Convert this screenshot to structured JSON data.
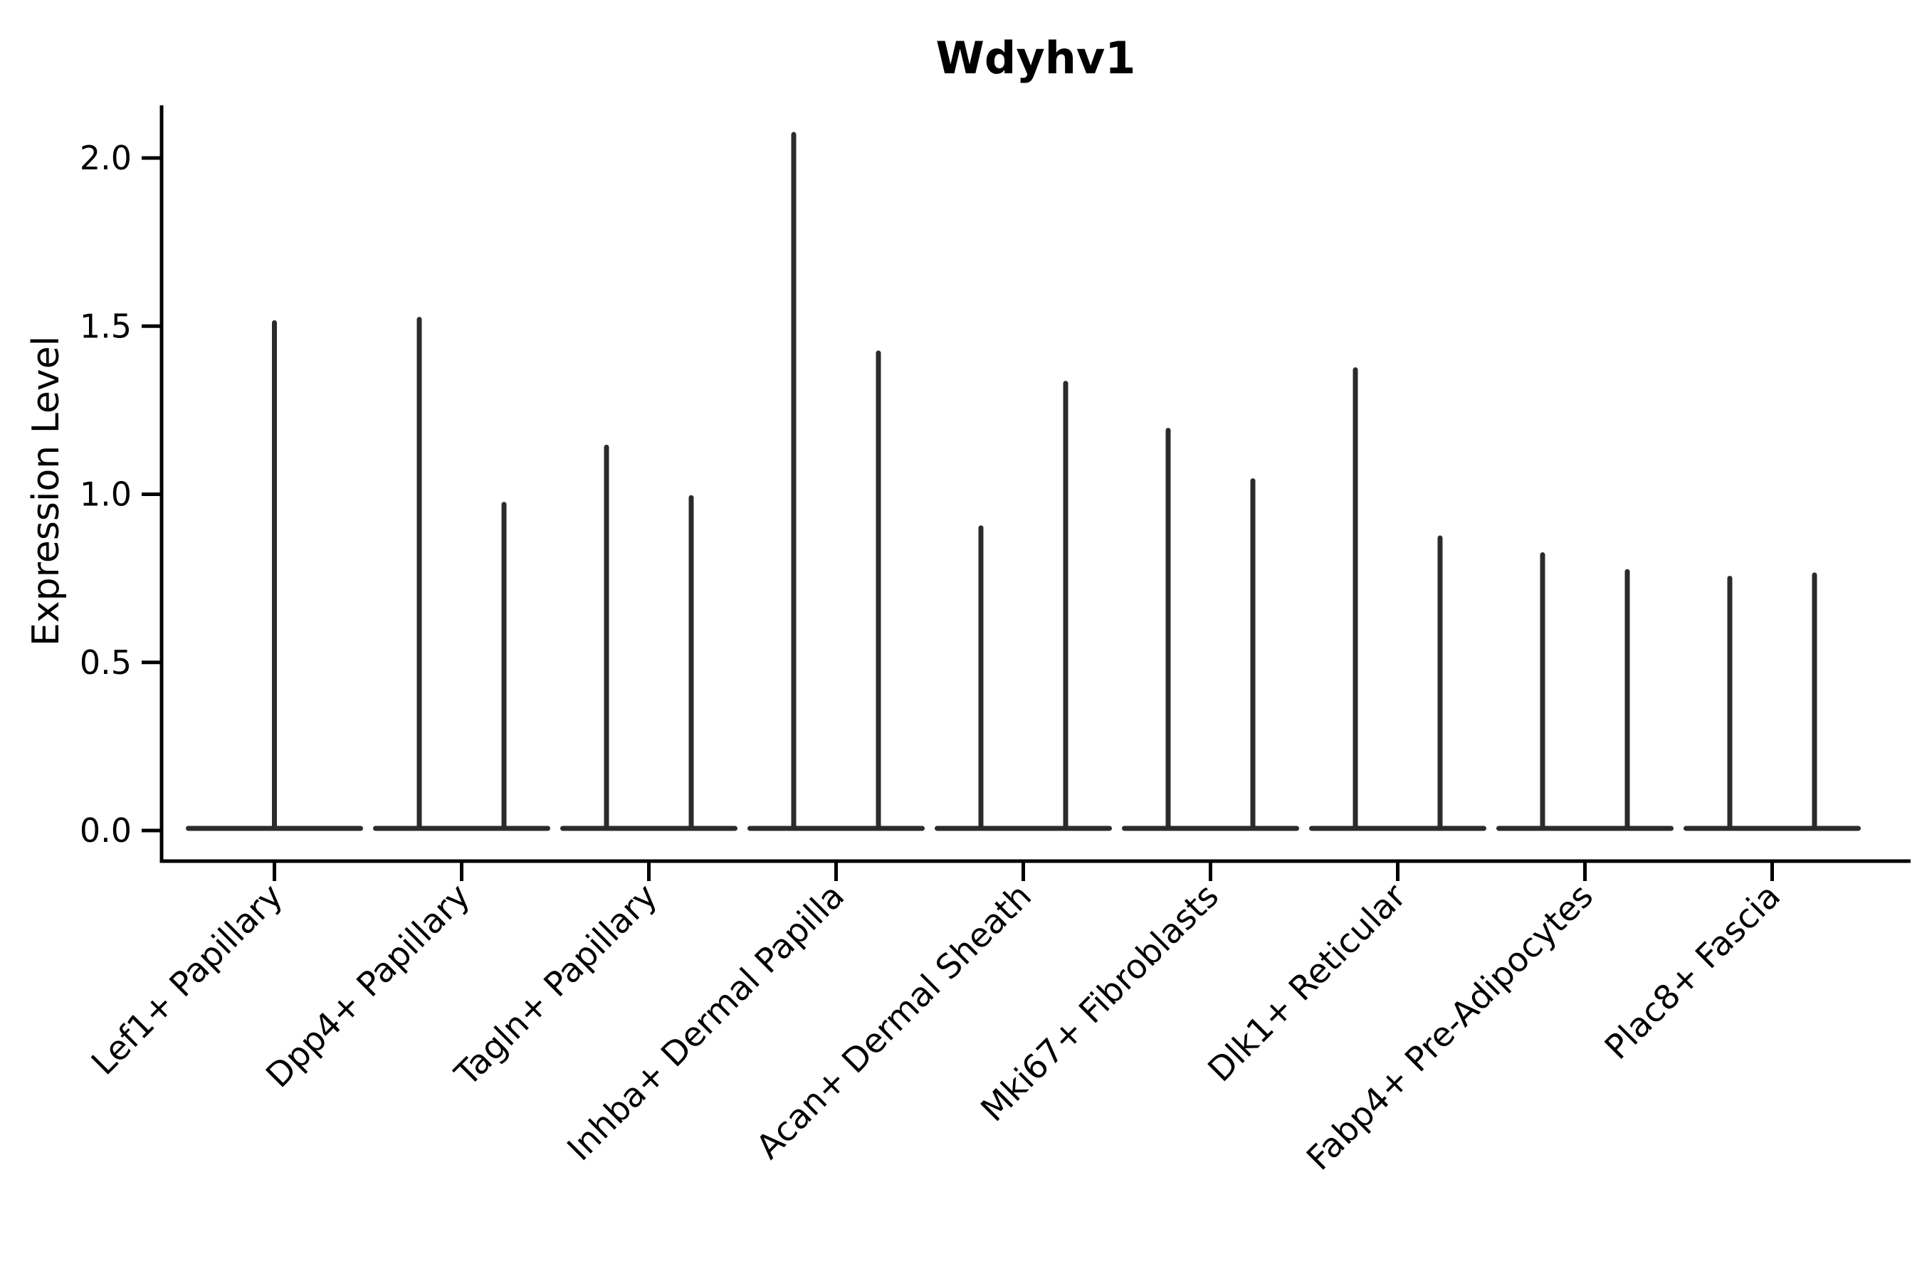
{
  "chart_data": {
    "type": "violin",
    "title": "Wdyhv1",
    "xlabel": "",
    "ylabel": "Expression Level",
    "yticks": [
      "0.0",
      "0.5",
      "1.0",
      "1.5",
      "2.0"
    ],
    "ylim": [
      0.0,
      2.15
    ],
    "grid": false,
    "legend": null,
    "categories": [
      "Lef1+ Papillary",
      "Dpp4+ Papillary",
      "Tagln+ Papillary",
      "Inhba+ Dermal Papilla",
      "Acan+ Dermal Sheath",
      "Mki67+ Fibroblasts",
      "Dlk1+ Reticular",
      "Fabp4+ Pre-Adipocytes",
      "Plac8+ Fascia"
    ],
    "violins": [
      {
        "category": "Lef1+ Papillary",
        "maxima": [
          1.51
        ]
      },
      {
        "category": "Dpp4+ Papillary",
        "maxima": [
          1.52,
          0.97
        ]
      },
      {
        "category": "Tagln+ Papillary",
        "maxima": [
          1.14,
          0.99
        ]
      },
      {
        "category": "Inhba+ Dermal Papilla",
        "maxima": [
          2.07,
          1.42
        ]
      },
      {
        "category": "Acan+ Dermal Sheath",
        "maxima": [
          0.9,
          1.33
        ]
      },
      {
        "category": "Mki67+ Fibroblasts",
        "maxima": [
          1.19,
          1.04
        ]
      },
      {
        "category": "Dlk1+ Reticular",
        "maxima": [
          1.37,
          0.87
        ]
      },
      {
        "category": "Fabp4+ Pre-Adipocytes",
        "maxima": [
          0.82,
          0.77
        ]
      },
      {
        "category": "Plac8+ Fascia",
        "maxima": [
          0.75,
          0.76
        ]
      }
    ],
    "baseline_value": 0.0,
    "violin_shape_note": "Each violin is collapsed flat at expression 0 (wide thin base line) with a single thin density spike rising to its maximum; the first category has one centered violin, all other categories have two violins side by side.",
    "colors": {
      "violin": "#2b2b2b",
      "axis": "#000000",
      "background": "#ffffff"
    }
  }
}
